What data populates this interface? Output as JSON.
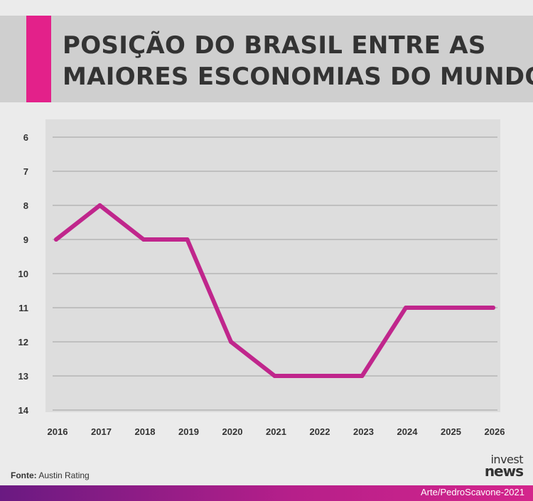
{
  "header": {
    "title_line1": "POSIÇÃO DO BRASIL ENTRE AS",
    "title_line2": "MAIORES ESCONOMIAS DO MUNDO"
  },
  "footer": {
    "source_label": "Fonte:",
    "source_value": "Austin Rating",
    "credit": "Arte/PedroScavone-2021"
  },
  "logo": {
    "line1": "invest",
    "line2": "news"
  },
  "colors": {
    "accent": "#e3218a",
    "line": "#c0268c",
    "header_bg": "#cfcfcf",
    "plot_bg": "#dddddd",
    "page_bg": "#ebebeb"
  },
  "chart_data": {
    "type": "line",
    "title": "POSIÇÃO DO BRASIL ENTRE AS MAIORES ESCONOMIAS DO MUNDO",
    "xlabel": "",
    "ylabel": "",
    "x": [
      "2016",
      "2017",
      "2018",
      "2019",
      "2020",
      "2021",
      "2022",
      "2023",
      "2024",
      "2025",
      "2026"
    ],
    "series": [
      {
        "values": [
          9,
          8,
          9,
          9,
          12,
          13,
          13,
          13,
          11,
          11,
          11
        ]
      }
    ],
    "y_ticks": [
      6,
      7,
      8,
      9,
      10,
      11,
      12,
      13,
      14
    ],
    "ylim": [
      6,
      14
    ],
    "y_inverted": true,
    "grid": true,
    "legend": "none"
  }
}
